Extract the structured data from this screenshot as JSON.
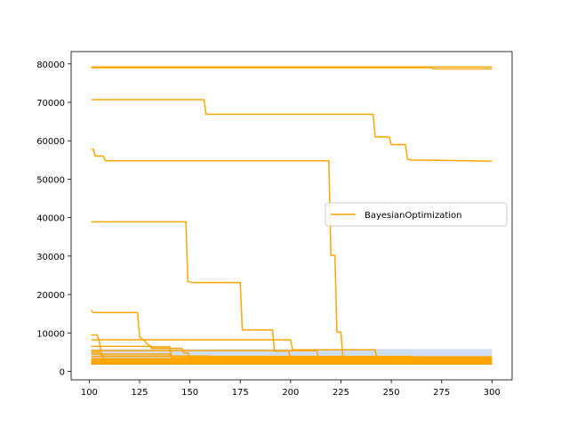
{
  "chart_data": {
    "type": "line",
    "title": "",
    "xlabel": "",
    "ylabel": "",
    "xlim": [
      91,
      310
    ],
    "ylim": [
      -2200,
      83200
    ],
    "x_ticks": [
      100,
      125,
      150,
      175,
      200,
      225,
      250,
      275,
      300
    ],
    "y_ticks": [
      0,
      10000,
      20000,
      30000,
      40000,
      50000,
      60000,
      70000,
      80000
    ],
    "grid": false,
    "legend": {
      "position": "center-right",
      "entries": [
        "BayesianOptimization"
      ]
    },
    "colors": {
      "line": "#ffa500",
      "band": "#aec7e8",
      "axes": "#000000",
      "background": "#ffffff"
    },
    "band": {
      "x": [
        101,
        300
      ],
      "lower": [
        3000,
        3000
      ],
      "upper": [
        5800,
        5800
      ]
    },
    "series": [
      {
        "values": [
          [
            101,
            79200
          ],
          [
            300,
            79200
          ]
        ]
      },
      {
        "values": [
          [
            101,
            79000
          ],
          [
            270,
            79000
          ],
          [
            271,
            78700
          ],
          [
            300,
            78700
          ]
        ]
      },
      {
        "values": [
          [
            101,
            70700
          ],
          [
            157,
            70700
          ],
          [
            158,
            66900
          ],
          [
            241,
            66900
          ],
          [
            242,
            61000
          ],
          [
            249,
            61000
          ],
          [
            250,
            59000
          ],
          [
            257,
            59000
          ],
          [
            258,
            55200
          ],
          [
            260,
            55000
          ],
          [
            275,
            54900
          ],
          [
            300,
            54700
          ]
        ]
      },
      {
        "values": [
          [
            101,
            57800
          ],
          [
            102,
            57800
          ],
          [
            103,
            56000
          ],
          [
            107,
            56000
          ],
          [
            108,
            54800
          ],
          [
            219,
            54800
          ],
          [
            220,
            30200
          ],
          [
            222,
            30200
          ],
          [
            223,
            10200
          ],
          [
            225,
            10200
          ],
          [
            226,
            3100
          ],
          [
            300,
            3100
          ]
        ]
      },
      {
        "values": [
          [
            101,
            38900
          ],
          [
            148,
            38900
          ],
          [
            149,
            23400
          ],
          [
            150,
            23300
          ],
          [
            151,
            23100
          ],
          [
            175,
            23100
          ],
          [
            176,
            10800
          ],
          [
            191,
            10800
          ],
          [
            192,
            5300
          ],
          [
            199,
            5300
          ],
          [
            200,
            3200
          ],
          [
            300,
            3200
          ]
        ]
      },
      {
        "values": [
          [
            101,
            16000
          ],
          [
            102,
            15300
          ],
          [
            124,
            15300
          ],
          [
            125,
            9000
          ],
          [
            127,
            8200
          ],
          [
            129,
            7000
          ],
          [
            131,
            6400
          ],
          [
            140,
            6400
          ],
          [
            141,
            3500
          ],
          [
            300,
            3500
          ]
        ]
      },
      {
        "values": [
          [
            101,
            8200
          ],
          [
            200,
            8200
          ],
          [
            201,
            5600
          ],
          [
            242,
            5600
          ],
          [
            243,
            3000
          ],
          [
            300,
            3000
          ]
        ]
      },
      {
        "values": [
          [
            101,
            9500
          ],
          [
            104,
            9500
          ],
          [
            105,
            7800
          ],
          [
            106,
            4500
          ],
          [
            107,
            3600
          ],
          [
            108,
            3000
          ],
          [
            300,
            3000
          ]
        ]
      },
      {
        "values": [
          [
            101,
            6500
          ],
          [
            130,
            6500
          ],
          [
            131,
            6000
          ],
          [
            146,
            6000
          ],
          [
            147,
            4800
          ],
          [
            149,
            4800
          ],
          [
            150,
            3800
          ],
          [
            300,
            3800
          ]
        ]
      },
      {
        "values": [
          [
            101,
            5000
          ],
          [
            105,
            5000
          ],
          [
            106,
            4000
          ],
          [
            160,
            4000
          ],
          [
            161,
            3000
          ],
          [
            300,
            3000
          ]
        ]
      },
      {
        "values": [
          [
            101,
            4500
          ],
          [
            140,
            4500
          ],
          [
            141,
            3200
          ],
          [
            300,
            3200
          ]
        ]
      },
      {
        "values": [
          [
            101,
            5400
          ],
          [
            213,
            5400
          ],
          [
            214,
            2800
          ],
          [
            300,
            2800
          ]
        ]
      },
      {
        "values": [
          [
            101,
            3900
          ],
          [
            260,
            3900
          ],
          [
            261,
            2700
          ],
          [
            300,
            2700
          ]
        ]
      },
      {
        "values": [
          [
            101,
            3300
          ],
          [
            300,
            3300
          ]
        ]
      },
      {
        "values": [
          [
            101,
            3000
          ],
          [
            300,
            3000
          ]
        ]
      },
      {
        "values": [
          [
            101,
            2700
          ],
          [
            300,
            2700
          ]
        ]
      },
      {
        "values": [
          [
            101,
            2500
          ],
          [
            300,
            2500
          ]
        ]
      },
      {
        "values": [
          [
            101,
            2300
          ],
          [
            300,
            2300
          ]
        ]
      },
      {
        "values": [
          [
            101,
            2100
          ],
          [
            300,
            2100
          ]
        ]
      },
      {
        "values": [
          [
            101,
            1900
          ],
          [
            300,
            1900
          ]
        ]
      }
    ]
  }
}
